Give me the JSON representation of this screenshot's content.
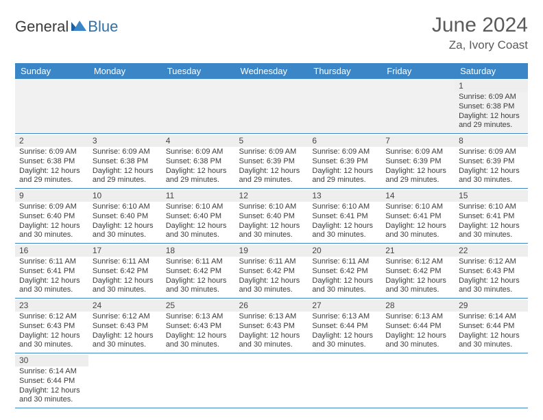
{
  "brand": {
    "part1": "General",
    "part2": "Blue"
  },
  "title": "June 2024",
  "location": "Za, Ivory Coast",
  "colors": {
    "header_bg": "#3b86c6",
    "header_text": "#ffffff",
    "row_divider": "#3b86c6",
    "daynum_bg": "#eeeeee",
    "blank_bg": "#f1f1f1",
    "text": "#3b3b3b",
    "brand_blue": "#2f6fa8"
  },
  "columns": [
    "Sunday",
    "Monday",
    "Tuesday",
    "Wednesday",
    "Thursday",
    "Friday",
    "Saturday"
  ],
  "weeks": [
    [
      null,
      null,
      null,
      null,
      null,
      null,
      {
        "d": "1",
        "sr": "6:09 AM",
        "ss": "6:38 PM",
        "dl": "12 hours and 29 minutes."
      }
    ],
    [
      {
        "d": "2",
        "sr": "6:09 AM",
        "ss": "6:38 PM",
        "dl": "12 hours and 29 minutes."
      },
      {
        "d": "3",
        "sr": "6:09 AM",
        "ss": "6:38 PM",
        "dl": "12 hours and 29 minutes."
      },
      {
        "d": "4",
        "sr": "6:09 AM",
        "ss": "6:38 PM",
        "dl": "12 hours and 29 minutes."
      },
      {
        "d": "5",
        "sr": "6:09 AM",
        "ss": "6:39 PM",
        "dl": "12 hours and 29 minutes."
      },
      {
        "d": "6",
        "sr": "6:09 AM",
        "ss": "6:39 PM",
        "dl": "12 hours and 29 minutes."
      },
      {
        "d": "7",
        "sr": "6:09 AM",
        "ss": "6:39 PM",
        "dl": "12 hours and 29 minutes."
      },
      {
        "d": "8",
        "sr": "6:09 AM",
        "ss": "6:39 PM",
        "dl": "12 hours and 30 minutes."
      }
    ],
    [
      {
        "d": "9",
        "sr": "6:09 AM",
        "ss": "6:40 PM",
        "dl": "12 hours and 30 minutes."
      },
      {
        "d": "10",
        "sr": "6:10 AM",
        "ss": "6:40 PM",
        "dl": "12 hours and 30 minutes."
      },
      {
        "d": "11",
        "sr": "6:10 AM",
        "ss": "6:40 PM",
        "dl": "12 hours and 30 minutes."
      },
      {
        "d": "12",
        "sr": "6:10 AM",
        "ss": "6:40 PM",
        "dl": "12 hours and 30 minutes."
      },
      {
        "d": "13",
        "sr": "6:10 AM",
        "ss": "6:41 PM",
        "dl": "12 hours and 30 minutes."
      },
      {
        "d": "14",
        "sr": "6:10 AM",
        "ss": "6:41 PM",
        "dl": "12 hours and 30 minutes."
      },
      {
        "d": "15",
        "sr": "6:10 AM",
        "ss": "6:41 PM",
        "dl": "12 hours and 30 minutes."
      }
    ],
    [
      {
        "d": "16",
        "sr": "6:11 AM",
        "ss": "6:41 PM",
        "dl": "12 hours and 30 minutes."
      },
      {
        "d": "17",
        "sr": "6:11 AM",
        "ss": "6:42 PM",
        "dl": "12 hours and 30 minutes."
      },
      {
        "d": "18",
        "sr": "6:11 AM",
        "ss": "6:42 PM",
        "dl": "12 hours and 30 minutes."
      },
      {
        "d": "19",
        "sr": "6:11 AM",
        "ss": "6:42 PM",
        "dl": "12 hours and 30 minutes."
      },
      {
        "d": "20",
        "sr": "6:11 AM",
        "ss": "6:42 PM",
        "dl": "12 hours and 30 minutes."
      },
      {
        "d": "21",
        "sr": "6:12 AM",
        "ss": "6:42 PM",
        "dl": "12 hours and 30 minutes."
      },
      {
        "d": "22",
        "sr": "6:12 AM",
        "ss": "6:43 PM",
        "dl": "12 hours and 30 minutes."
      }
    ],
    [
      {
        "d": "23",
        "sr": "6:12 AM",
        "ss": "6:43 PM",
        "dl": "12 hours and 30 minutes."
      },
      {
        "d": "24",
        "sr": "6:12 AM",
        "ss": "6:43 PM",
        "dl": "12 hours and 30 minutes."
      },
      {
        "d": "25",
        "sr": "6:13 AM",
        "ss": "6:43 PM",
        "dl": "12 hours and 30 minutes."
      },
      {
        "d": "26",
        "sr": "6:13 AM",
        "ss": "6:43 PM",
        "dl": "12 hours and 30 minutes."
      },
      {
        "d": "27",
        "sr": "6:13 AM",
        "ss": "6:44 PM",
        "dl": "12 hours and 30 minutes."
      },
      {
        "d": "28",
        "sr": "6:13 AM",
        "ss": "6:44 PM",
        "dl": "12 hours and 30 minutes."
      },
      {
        "d": "29",
        "sr": "6:14 AM",
        "ss": "6:44 PM",
        "dl": "12 hours and 30 minutes."
      }
    ],
    [
      {
        "d": "30",
        "sr": "6:14 AM",
        "ss": "6:44 PM",
        "dl": "12 hours and 30 minutes."
      },
      null,
      null,
      null,
      null,
      null,
      null
    ]
  ],
  "labels": {
    "sunrise": "Sunrise:",
    "sunset": "Sunset:",
    "daylight": "Daylight:"
  }
}
